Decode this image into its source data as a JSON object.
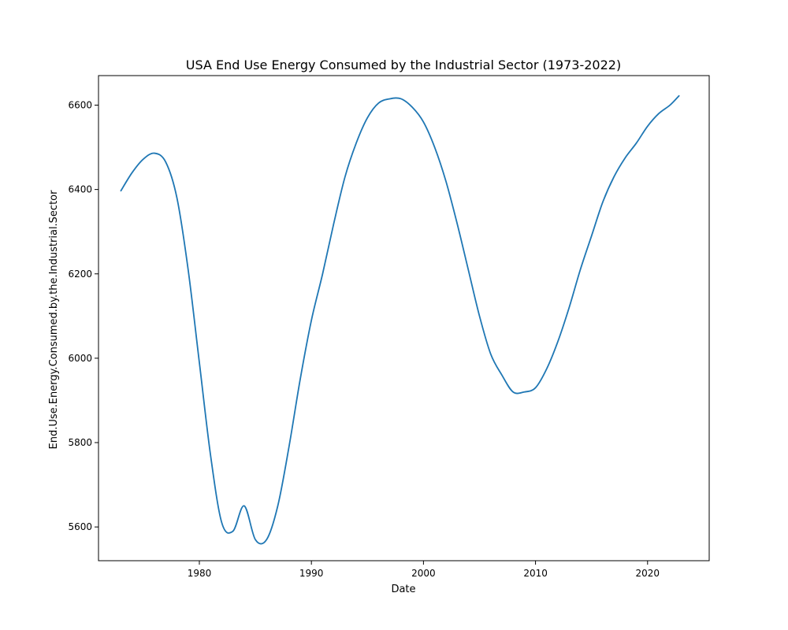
{
  "chart_data": {
    "type": "line",
    "title": "USA End Use Energy Consumed by the Industrial Sector (1973-2022)",
    "xlabel": "Date",
    "ylabel": "End.Use.Energy.Consumed.by.the.Industrial.Sector",
    "xlim": [
      1971,
      2025.5
    ],
    "ylim": [
      5520,
      6670
    ],
    "x_ticks": [
      1980,
      1990,
      2000,
      2010,
      2020
    ],
    "y_ticks": [
      5600,
      5800,
      6000,
      6200,
      6400,
      6600
    ],
    "grid": false,
    "series": [
      {
        "color": "#1f77b4",
        "x": [
          1973,
          1974,
          1975,
          1976,
          1977,
          1978,
          1979,
          1980,
          1981,
          1982,
          1983,
          1984,
          1985,
          1986,
          1987,
          1988,
          1989,
          1990,
          1991,
          1992,
          1993,
          1994,
          1995,
          1996,
          1997,
          1998,
          1999,
          2000,
          2001,
          2002,
          2003,
          2004,
          2005,
          2006,
          2007,
          2008,
          2009,
          2010,
          2011,
          2012,
          2013,
          2014,
          2015,
          2016,
          2017,
          2018,
          2019,
          2020,
          2021,
          2022,
          2022.8
        ],
        "y": [
          6397,
          6440,
          6472,
          6486,
          6465,
          6380,
          6210,
          5990,
          5770,
          5610,
          5590,
          5650,
          5570,
          5570,
          5650,
          5790,
          5950,
          6090,
          6200,
          6320,
          6430,
          6510,
          6570,
          6605,
          6615,
          6615,
          6595,
          6560,
          6500,
          6420,
          6320,
          6210,
          6100,
          6010,
          5960,
          5920,
          5920,
          5930,
          5975,
          6040,
          6120,
          6210,
          6290,
          6370,
          6430,
          6475,
          6510,
          6550,
          6580,
          6600,
          6622
        ]
      }
    ]
  }
}
